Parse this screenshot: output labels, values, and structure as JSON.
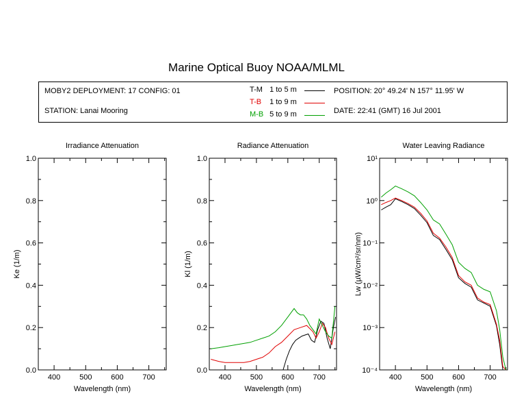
{
  "title": "Marine Optical Buoy NOAA/MLML",
  "info": {
    "deployment": "MOBY2 DEPLOYMENT: 17 CONFIG: 01",
    "station": "STATION: Lanai Mooring",
    "position": "POSITION: 20° 49.24' N   157° 11.95' W",
    "date": "DATE: 22:41 (GMT) 16 Jul 2001",
    "legend": [
      {
        "label": "T-M",
        "range": "1 to 5  m",
        "color": "#000000"
      },
      {
        "label": "T-B",
        "range": "1 to 9  m",
        "color": "#e00000"
      },
      {
        "label": "M-B",
        "range": "5 to 9  m",
        "color": "#00a000"
      }
    ]
  },
  "chart_data": [
    {
      "type": "line",
      "title": "Irradiance Attenuation",
      "xlabel": "Wavelength (nm)",
      "ylabel": "Ke  (1/m)",
      "xlim": [
        350,
        755
      ],
      "ylim": [
        0,
        1
      ],
      "xticks": [
        400,
        500,
        600,
        700
      ],
      "yticks": [
        "0.0",
        "0.2",
        "0.4",
        "0.6",
        "0.8",
        "1.0"
      ],
      "series": []
    },
    {
      "type": "line",
      "title": "Radiance Attenuation",
      "xlabel": "Wavelength (nm)",
      "ylabel": "Kl  (1/m)",
      "xlim": [
        350,
        755
      ],
      "ylim": [
        0,
        1
      ],
      "xticks": [
        400,
        500,
        600,
        700
      ],
      "yticks": [
        "0.0",
        "0.2",
        "0.4",
        "0.6",
        "0.8",
        "1.0"
      ],
      "series": [
        {
          "name": "T-M",
          "color": "#000000",
          "x": [
            585,
            595,
            605,
            615,
            625,
            635,
            645,
            655,
            665,
            675,
            685,
            695,
            705,
            715,
            725,
            735,
            745,
            752
          ],
          "y": [
            0.0,
            0.05,
            0.09,
            0.12,
            0.14,
            0.15,
            0.16,
            0.165,
            0.17,
            0.14,
            0.13,
            0.19,
            0.23,
            0.22,
            0.15,
            0.1,
            0.2,
            0.25
          ]
        },
        {
          "name": "T-B",
          "color": "#e00000",
          "x": [
            355,
            380,
            400,
            420,
            440,
            460,
            480,
            500,
            520,
            540,
            560,
            580,
            600,
            620,
            640,
            660,
            680,
            690,
            700,
            710,
            720,
            730,
            740,
            750
          ],
          "y": [
            0.05,
            0.04,
            0.035,
            0.035,
            0.035,
            0.035,
            0.04,
            0.05,
            0.06,
            0.08,
            0.11,
            0.13,
            0.16,
            0.19,
            0.2,
            0.21,
            0.18,
            0.15,
            0.18,
            0.22,
            0.2,
            0.15,
            0.12,
            0.18
          ]
        },
        {
          "name": "M-B",
          "color": "#00a000",
          "x": [
            355,
            380,
            400,
            420,
            440,
            460,
            480,
            500,
            520,
            540,
            560,
            580,
            600,
            610,
            620,
            630,
            640,
            650,
            660,
            670,
            680,
            690,
            700,
            710,
            720,
            730,
            740,
            750
          ],
          "y": [
            0.1,
            0.105,
            0.11,
            0.115,
            0.12,
            0.125,
            0.13,
            0.14,
            0.15,
            0.16,
            0.18,
            0.21,
            0.25,
            0.27,
            0.29,
            0.27,
            0.26,
            0.26,
            0.24,
            0.21,
            0.19,
            0.17,
            0.24,
            0.21,
            0.18,
            0.16,
            0.15,
            0.3
          ]
        }
      ]
    },
    {
      "type": "line",
      "title": "Water Leaving Radiance",
      "xlabel": "Wavelength (nm)",
      "ylabel": "Lw  (µW/cm²/sr/nm)",
      "xlim": [
        350,
        755
      ],
      "ylim": [
        0.0001,
        10
      ],
      "log_y": true,
      "xticks": [
        400,
        500,
        600,
        700
      ],
      "yticks": [
        "10⁻⁴",
        "10⁻³",
        "10⁻²",
        "10⁻¹",
        "10⁰",
        "10¹"
      ],
      "series": [
        {
          "name": "T-M",
          "color": "#000000",
          "x": [
            355,
            370,
            385,
            400,
            420,
            440,
            460,
            480,
            500,
            520,
            540,
            560,
            580,
            600,
            620,
            640,
            660,
            680,
            700,
            720,
            730,
            740,
            750
          ],
          "y": [
            0.6,
            0.7,
            0.8,
            1.1,
            0.95,
            0.8,
            0.65,
            0.45,
            0.3,
            0.15,
            0.12,
            0.07,
            0.04,
            0.015,
            0.011,
            0.009,
            0.0045,
            0.0038,
            0.0032,
            0.0011,
            0.0004,
            0.0001,
            0.0001
          ]
        },
        {
          "name": "T-B",
          "color": "#e00000",
          "x": [
            355,
            370,
            385,
            400,
            420,
            440,
            460,
            480,
            500,
            520,
            540,
            560,
            580,
            600,
            620,
            640,
            660,
            680,
            700,
            720,
            730,
            740,
            750
          ],
          "y": [
            0.8,
            0.9,
            1.0,
            1.15,
            1.0,
            0.85,
            0.7,
            0.5,
            0.33,
            0.17,
            0.13,
            0.08,
            0.045,
            0.017,
            0.012,
            0.01,
            0.005,
            0.004,
            0.0035,
            0.0012,
            0.0005,
            0.00012,
            0.0001
          ]
        },
        {
          "name": "M-B",
          "color": "#00a000",
          "x": [
            355,
            370,
            385,
            400,
            420,
            440,
            460,
            480,
            500,
            520,
            540,
            560,
            580,
            600,
            620,
            640,
            660,
            680,
            700,
            720,
            730,
            740,
            750
          ],
          "y": [
            1.2,
            1.5,
            1.8,
            2.2,
            1.9,
            1.6,
            1.3,
            0.9,
            0.6,
            0.35,
            0.28,
            0.16,
            0.09,
            0.035,
            0.025,
            0.02,
            0.01,
            0.008,
            0.007,
            0.0025,
            0.0009,
            0.0002,
            0.0001
          ]
        }
      ]
    }
  ]
}
